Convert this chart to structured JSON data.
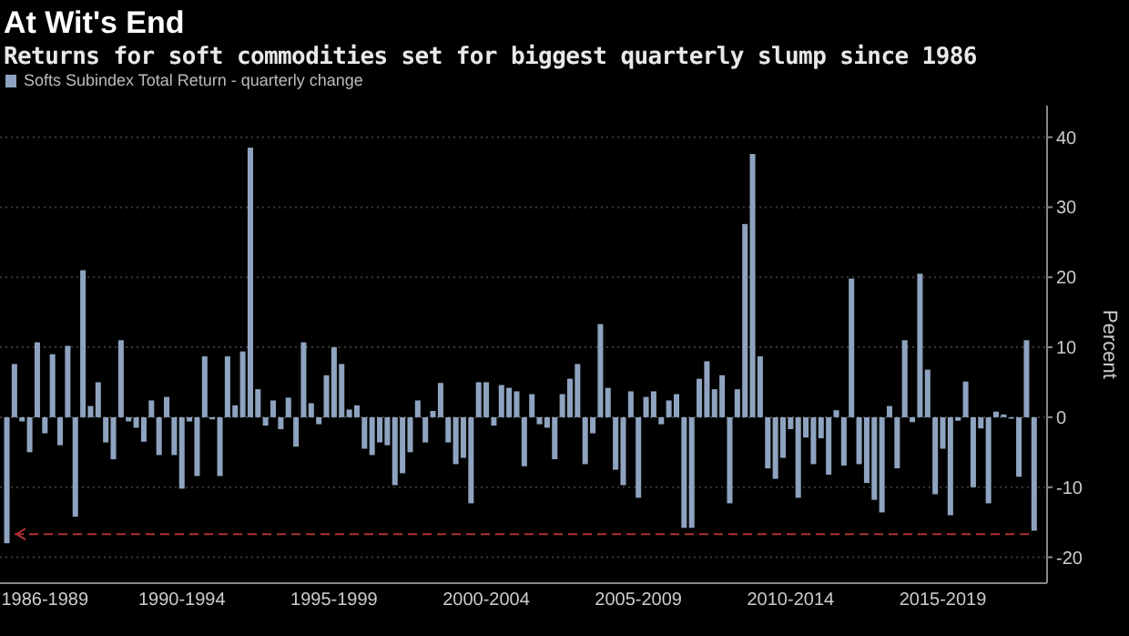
{
  "chart_data": {
    "type": "bar",
    "title": "At Wit's End",
    "subtitle": "Returns for soft commodities set for biggest quarterly slump since 1986",
    "ylabel": "Percent",
    "categories": [
      null,
      null,
      null,
      null,
      null,
      "1986-1989",
      null,
      null,
      null,
      null,
      null,
      null,
      null,
      null,
      null,
      null,
      null,
      null,
      null,
      null,
      null,
      null,
      null,
      "1990-1994",
      null,
      null,
      null,
      null,
      null,
      null,
      null,
      null,
      null,
      null,
      null,
      null,
      null,
      null,
      null,
      null,
      null,
      null,
      null,
      "1995-1999",
      null,
      null,
      null,
      null,
      null,
      null,
      null,
      null,
      null,
      null,
      null,
      null,
      null,
      null,
      null,
      null,
      null,
      null,
      null,
      "2000-2004",
      null,
      null,
      null,
      null,
      null,
      null,
      null,
      null,
      null,
      null,
      null,
      null,
      null,
      null,
      null,
      null,
      null,
      null,
      null,
      "2005-2009",
      null,
      null,
      null,
      null,
      null,
      null,
      null,
      null,
      null,
      null,
      null,
      null,
      null,
      null,
      null,
      null,
      null,
      null,
      null,
      "2010-2014",
      null,
      null,
      null,
      null,
      null,
      null,
      null,
      null,
      null,
      null,
      null,
      null,
      null,
      null,
      null,
      null,
      null,
      null,
      null,
      "2015-2019",
      null,
      null,
      null,
      null,
      null,
      null,
      null,
      null,
      null,
      null,
      null,
      null
    ],
    "series": [
      {
        "name": "Softs Subindex Total Return - quarterly change",
        "color": "#8ea3bf",
        "values": [
          -18,
          7.6,
          -0.6,
          -5,
          10.7,
          -2.3,
          9,
          -4,
          10.2,
          -14.2,
          21,
          1.6,
          5,
          -3.6,
          -6,
          11,
          -0.6,
          -1.5,
          -3.5,
          2.4,
          -5.4,
          2.9,
          -5.4,
          -10.2,
          -0.6,
          -8.4,
          8.7,
          -0.3,
          -8.4,
          8.7,
          1.7,
          9.4,
          38.5,
          4,
          -1.2,
          2.4,
          -1.7,
          2.8,
          -4.2,
          10.7,
          2,
          -1,
          6,
          10,
          7.6,
          1.1,
          1.7,
          -4.5,
          -5.4,
          -3.6,
          -4,
          -9.7,
          -8,
          -5,
          2.4,
          -3.6,
          0.9,
          4.9,
          -3.6,
          -6.7,
          -5.8,
          -12.3,
          5,
          5,
          -1.2,
          4.6,
          4.2,
          3.7,
          -7,
          3.3,
          -1,
          -1.5,
          -6,
          3.3,
          5.5,
          7.6,
          -6.7,
          -2.3,
          13.3,
          4.2,
          -7.5,
          -9.7,
          3.7,
          -11.5,
          2.9,
          3.7,
          -1,
          2.4,
          3.3,
          -15.8,
          -15.8,
          5.5,
          8,
          4,
          6,
          -12.3,
          4,
          27.6,
          37.6,
          8.7,
          -7.3,
          -8.8,
          -5.8,
          -1.7,
          -11.5,
          -2.9,
          -6.7,
          -3,
          -8.2,
          1,
          -6.9,
          19.8,
          -6.7,
          -9.4,
          -11.8,
          -13.6,
          1.6,
          -7.3,
          11,
          -0.7,
          20.5,
          6.8,
          -11,
          -4.5,
          -14,
          -0.5,
          5.1,
          -10,
          -1.6,
          -12.3,
          0.8,
          0.4,
          -0.2,
          -8.5,
          11,
          -16.2
        ]
      }
    ],
    "ylim": [
      -23.7,
      44.5
    ],
    "yticks": [
      -20,
      -10,
      0,
      10,
      20,
      30,
      40
    ],
    "ref_lines": [
      {
        "axis": "y",
        "value": -16.7,
        "color": "#b03030",
        "line_style": "dashed"
      }
    ],
    "grid": "y",
    "legend": "top left"
  }
}
